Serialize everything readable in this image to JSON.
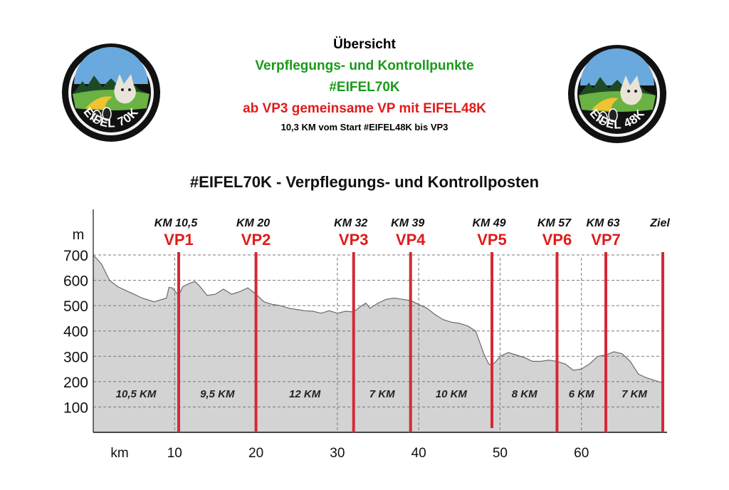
{
  "header": {
    "title": "Übersicht",
    "line1": "Verpflegungs- und Kontrollpunkte",
    "line2": "#EIFEL70K",
    "line3": "ab VP3 gemeinsame VP mit EIFEL48K",
    "line4": "10,3 KM vom Start #EIFEL48K bis VP3"
  },
  "logos": [
    {
      "text": "EIFEL 70K",
      "icon": "lynx-trail-badge-icon"
    },
    {
      "text": "EIFEL 48K",
      "icon": "lynx-trail-badge-icon"
    }
  ],
  "colors": {
    "green": "#1a9a1a",
    "red": "#e01b1b",
    "profile_fill": "#d3d3d3",
    "marker": "#d42a35"
  },
  "chart_data": {
    "type": "area",
    "title": "#EIFEL70K - Verpflegungs- und Kontrollposten",
    "xlabel": "km",
    "ylabel": "m",
    "xlim": [
      0,
      70
    ],
    "ylim": [
      0,
      700
    ],
    "xticks": [
      "10",
      "20",
      "30",
      "40",
      "50",
      "60"
    ],
    "yticks": [
      "100",
      "200",
      "300",
      "400",
      "500",
      "600",
      "700"
    ],
    "grid": "dashed",
    "elevation": {
      "x": [
        0,
        1,
        2,
        3,
        4,
        5,
        6,
        7,
        7.5,
        8,
        9,
        9.3,
        9.7,
        10.5,
        11,
        12,
        12.5,
        13,
        14,
        15,
        16,
        17,
        18,
        19,
        20,
        21,
        22,
        23,
        24,
        25,
        26,
        27,
        28,
        29,
        30,
        31,
        32,
        33,
        33.5,
        34,
        35,
        36,
        37,
        38,
        39,
        40,
        41,
        42,
        43,
        44,
        45,
        46,
        47,
        48,
        48.6,
        49,
        49.5,
        50,
        51,
        52,
        53,
        54,
        55,
        56,
        57,
        58,
        59,
        60,
        61,
        62,
        63,
        64,
        65,
        66,
        67,
        68,
        69,
        70
      ],
      "y": [
        700,
        665,
        600,
        575,
        560,
        545,
        530,
        520,
        515,
        520,
        530,
        572,
        570,
        540,
        575,
        590,
        595,
        580,
        540,
        545,
        565,
        545,
        555,
        570,
        545,
        515,
        505,
        500,
        490,
        485,
        480,
        478,
        470,
        480,
        470,
        478,
        475,
        500,
        510,
        490,
        510,
        525,
        530,
        525,
        520,
        505,
        490,
        465,
        445,
        435,
        430,
        420,
        400,
        310,
        270,
        265,
        280,
        300,
        315,
        305,
        295,
        280,
        280,
        285,
        280,
        270,
        245,
        250,
        270,
        300,
        305,
        318,
        310,
        280,
        230,
        215,
        205,
        195
      ]
    },
    "markers": [
      {
        "km_value": 10.5,
        "km": "KM 10,5",
        "vp": "VP1"
      },
      {
        "km_value": 20,
        "km": "KM 20",
        "vp": "VP2"
      },
      {
        "km_value": 32,
        "km": "KM 32",
        "vp": "VP3"
      },
      {
        "km_value": 39,
        "km": "KM 39",
        "vp": "VP4"
      },
      {
        "km_value": 49,
        "km": "KM 49",
        "vp": "VP5"
      },
      {
        "km_value": 57,
        "km": "KM 57",
        "vp": "VP6"
      },
      {
        "km_value": 63,
        "km": "KM 63",
        "vp": "VP7"
      },
      {
        "km_value": 70,
        "km": "Ziel",
        "vp": ""
      }
    ],
    "segments": [
      {
        "from": 0,
        "to": 10.5,
        "label": "10,5 KM"
      },
      {
        "from": 10.5,
        "to": 20,
        "label": "9,5 KM"
      },
      {
        "from": 20,
        "to": 32,
        "label": "12 KM"
      },
      {
        "from": 32,
        "to": 39,
        "label": "7 KM"
      },
      {
        "from": 39,
        "to": 49,
        "label": "10 KM"
      },
      {
        "from": 49,
        "to": 57,
        "label": "8 KM"
      },
      {
        "from": 57,
        "to": 63,
        "label": "6 KM"
      },
      {
        "from": 63,
        "to": 70,
        "label": "7 KM"
      }
    ],
    "segment_label_elevation": 155
  }
}
